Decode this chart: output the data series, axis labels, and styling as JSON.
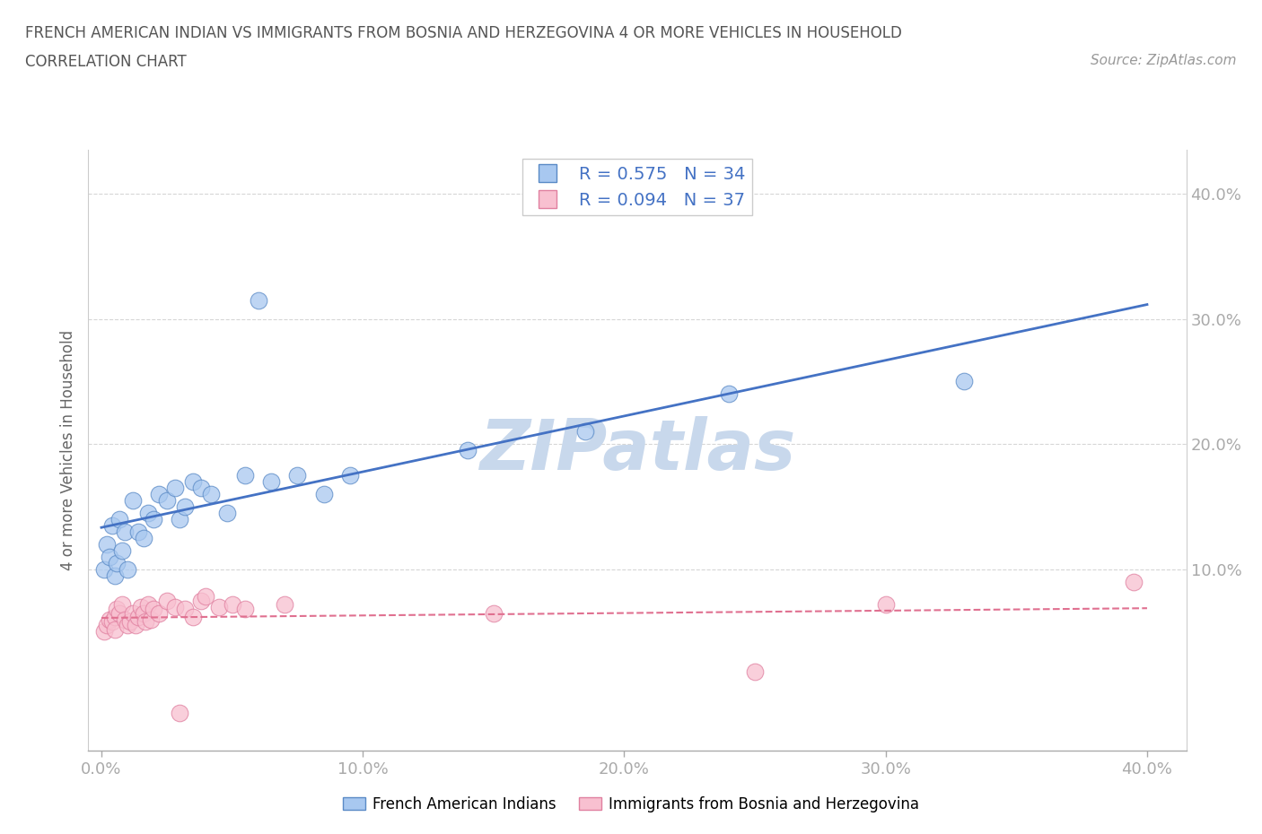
{
  "title_line1": "FRENCH AMERICAN INDIAN VS IMMIGRANTS FROM BOSNIA AND HERZEGOVINA 4 OR MORE VEHICLES IN HOUSEHOLD",
  "title_line2": "CORRELATION CHART",
  "source_text": "Source: ZipAtlas.com",
  "ylabel": "4 or more Vehicles in Household",
  "xlim": [
    -0.005,
    0.415
  ],
  "ylim": [
    -0.045,
    0.435
  ],
  "xtick_labels": [
    "0.0%",
    "10.0%",
    "20.0%",
    "30.0%",
    "40.0%"
  ],
  "xtick_vals": [
    0.0,
    0.1,
    0.2,
    0.3,
    0.4
  ],
  "ytick_labels": [
    "10.0%",
    "20.0%",
    "30.0%",
    "40.0%"
  ],
  "ytick_vals": [
    0.1,
    0.2,
    0.3,
    0.4
  ],
  "blue_color": "#a8c8f0",
  "blue_edge_color": "#5a8ac6",
  "blue_line_color": "#4472c4",
  "pink_color": "#f8c0d0",
  "pink_edge_color": "#e080a0",
  "pink_line_color": "#e07090",
  "watermark_color": "#c8d8ec",
  "R_blue": 0.575,
  "N_blue": 34,
  "R_pink": 0.094,
  "N_pink": 37,
  "legend_label_blue": "French American Indians",
  "legend_label_pink": "Immigrants from Bosnia and Herzegovina",
  "blue_scatter_x": [
    0.001,
    0.002,
    0.003,
    0.004,
    0.005,
    0.006,
    0.007,
    0.008,
    0.009,
    0.01,
    0.012,
    0.014,
    0.016,
    0.018,
    0.02,
    0.022,
    0.025,
    0.028,
    0.03,
    0.032,
    0.035,
    0.038,
    0.042,
    0.048,
    0.055,
    0.06,
    0.065,
    0.075,
    0.085,
    0.095,
    0.14,
    0.185,
    0.24,
    0.33
  ],
  "blue_scatter_y": [
    0.1,
    0.12,
    0.11,
    0.135,
    0.095,
    0.105,
    0.14,
    0.115,
    0.13,
    0.1,
    0.155,
    0.13,
    0.125,
    0.145,
    0.14,
    0.16,
    0.155,
    0.165,
    0.14,
    0.15,
    0.17,
    0.165,
    0.16,
    0.145,
    0.175,
    0.315,
    0.17,
    0.175,
    0.16,
    0.175,
    0.195,
    0.21,
    0.24,
    0.25
  ],
  "pink_scatter_x": [
    0.001,
    0.002,
    0.003,
    0.004,
    0.005,
    0.005,
    0.006,
    0.007,
    0.008,
    0.009,
    0.01,
    0.011,
    0.012,
    0.013,
    0.014,
    0.015,
    0.016,
    0.017,
    0.018,
    0.019,
    0.02,
    0.022,
    0.025,
    0.028,
    0.03,
    0.032,
    0.035,
    0.038,
    0.04,
    0.045,
    0.05,
    0.055,
    0.07,
    0.15,
    0.25,
    0.3,
    0.395
  ],
  "pink_scatter_y": [
    0.05,
    0.055,
    0.06,
    0.058,
    0.062,
    0.052,
    0.068,
    0.065,
    0.072,
    0.06,
    0.055,
    0.058,
    0.065,
    0.055,
    0.062,
    0.07,
    0.065,
    0.058,
    0.072,
    0.06,
    0.068,
    0.065,
    0.075,
    0.07,
    -0.015,
    0.068,
    0.062,
    0.075,
    0.078,
    0.07,
    0.072,
    0.068,
    0.072,
    0.065,
    0.018,
    0.072,
    0.09
  ]
}
